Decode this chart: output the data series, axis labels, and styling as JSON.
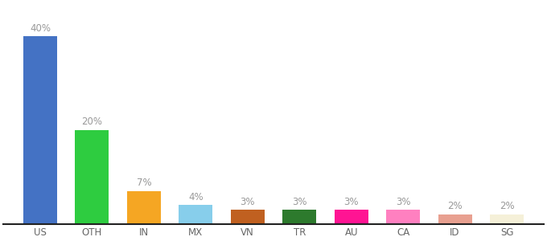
{
  "categories": [
    "US",
    "OTH",
    "IN",
    "MX",
    "VN",
    "TR",
    "AU",
    "CA",
    "ID",
    "SG"
  ],
  "values": [
    40,
    20,
    7,
    4,
    3,
    3,
    3,
    3,
    2,
    2
  ],
  "bar_colors": [
    "#4472c4",
    "#2ecc40",
    "#f5a623",
    "#87ceeb",
    "#c06020",
    "#2d7a2d",
    "#ff1493",
    "#ff80c0",
    "#e8a090",
    "#f5f0d8"
  ],
  "label_fontsize": 8.5,
  "tick_fontsize": 8.5,
  "label_color": "#999999",
  "tick_color": "#666666",
  "ylim": [
    0,
    47
  ],
  "bar_width": 0.65,
  "background_color": "#ffffff"
}
